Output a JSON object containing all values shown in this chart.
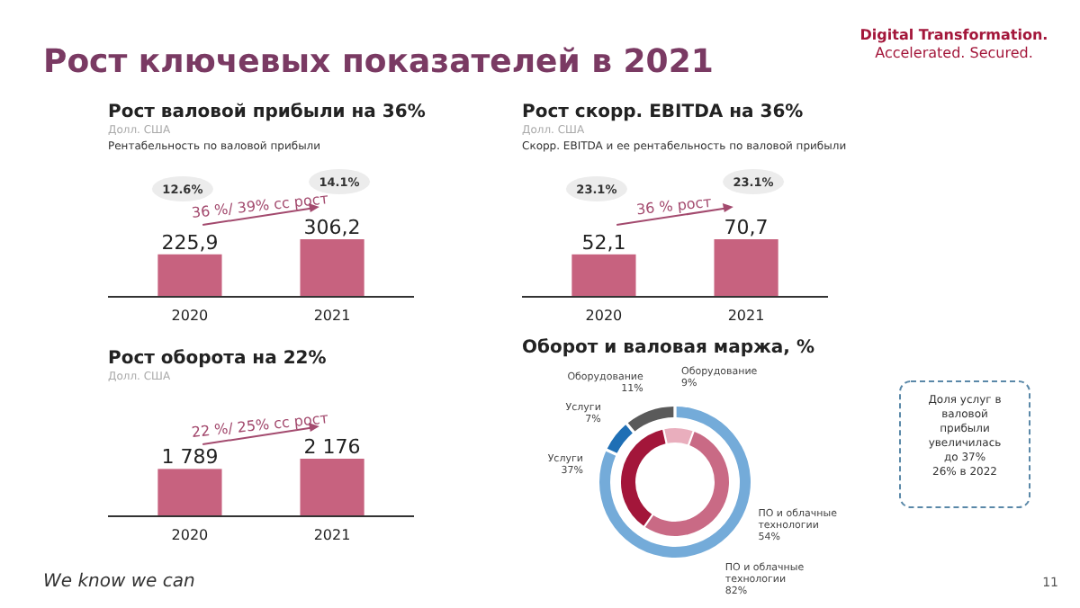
{
  "chart_data": [
    {
      "type": "other",
      "title": "Рост ключевых показателей в 2021",
      "annotations": [
        "Digital Transformation. Accelerated. Secured.",
        "We know we can",
        "11"
      ]
    },
    {
      "type": "bar",
      "title": "Рост валовой прибыли на 36%",
      "subtitle": "Долл. США",
      "categories": [
        "2020",
        "2021"
      ],
      "values": [
        225.9,
        306.2
      ],
      "value_labels": [
        "225,9",
        "306,2"
      ],
      "color": "#c7627f",
      "annotations": [
        "Рентабельность по валовой прибыли",
        "12.6%",
        "14.1%",
        "36 %/ 39% сс рост"
      ]
    },
    {
      "type": "bar",
      "title": "Рост скорр. EBITDA на 36%",
      "subtitle": "Долл. США",
      "categories": [
        "2020",
        "2021"
      ],
      "values": [
        52.1,
        70.7
      ],
      "value_labels": [
        "52,1",
        "70,7"
      ],
      "color": "#c7627f",
      "annotations": [
        "Скорр. EBITDA и ее рентабельность по валовой прибыли",
        "23.1%",
        "23.1%",
        "36 % рост"
      ]
    },
    {
      "type": "bar",
      "title": "Рост оборота на 22%",
      "subtitle": "Долл. США",
      "categories": [
        "2020",
        "2021"
      ],
      "values": [
        1789,
        2176
      ],
      "value_labels": [
        "1 789",
        "2 176"
      ],
      "color": "#c7627f",
      "annotations": [
        "22 %/ 25% сс рост"
      ]
    },
    {
      "type": "donut",
      "title": "Оборот и валовая маржа, %",
      "categories": [
        "ПО и облачные технологии",
        "Услуги",
        "Оборудование"
      ],
      "data_labels": true,
      "series": [
        {
          "values": [
            82,
            7,
            11
          ],
          "value_labels": [
            "82%",
            "7%",
            "11%"
          ],
          "colors": [
            "#74abd9",
            "#1f6fb5",
            "#5a5a5a"
          ]
        },
        {
          "values": [
            54,
            37,
            9
          ],
          "value_labels": [
            "54%",
            "37%",
            "9%"
          ],
          "colors": [
            "#c96a85",
            "#a3163a",
            "#e9aebd"
          ]
        }
      ],
      "annotations": [
        "Доля услуг в валовой прибыли увеличилась до 37%",
        "26% в 2022"
      ]
    }
  ]
}
